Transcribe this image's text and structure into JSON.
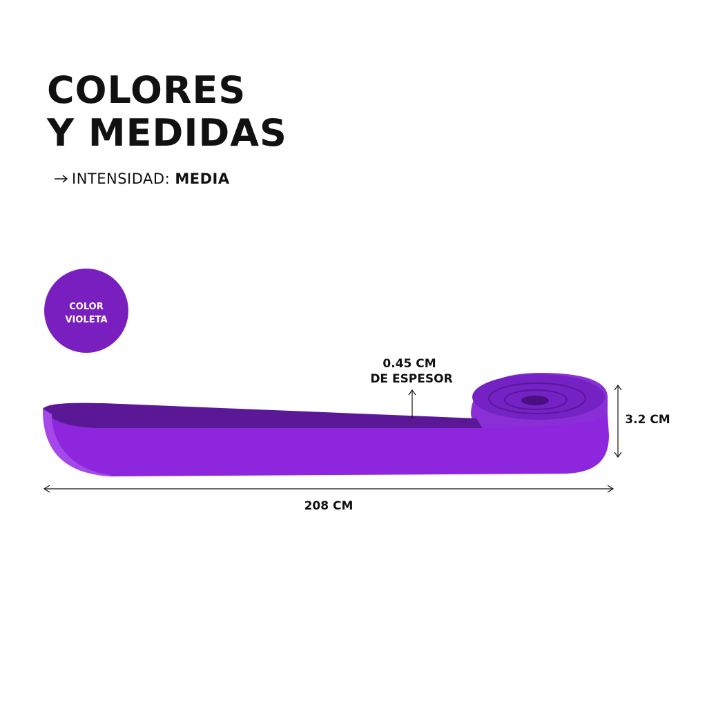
{
  "header": {
    "title_lines": [
      "COLORES",
      "Y MEDIDAS"
    ],
    "intensity_label": "INTENSIDAD:",
    "intensity_value": "MEDIA"
  },
  "badge": {
    "lines": [
      "COLOR",
      "VIOLETA"
    ]
  },
  "measures": {
    "thickness_lines": [
      "0.45 CM",
      "DE ESPESOR"
    ],
    "width": "3.2 CM",
    "length": "208 CM"
  }
}
